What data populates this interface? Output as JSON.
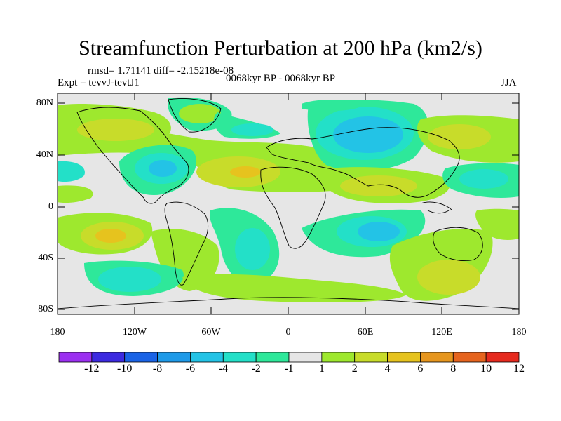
{
  "title": "Streamfunction Perturbation at 200 hPa (km2/s)",
  "rmsd_line": "rmsd= 1.71141 diff= -2.15218e-08",
  "expt_line": "Expt = tevvJ-tevtJ1",
  "period_line": "0068kyr BP - 0068kyr BP",
  "season": "JJA",
  "lat_labels": [
    "80N",
    "40N",
    "0",
    "40S",
    "80S"
  ],
  "lon_labels": [
    "180",
    "120W",
    "60W",
    "0",
    "60E",
    "120E",
    "180"
  ],
  "colorbar": {
    "levels": [
      "-12",
      "-10",
      "-8",
      "-6",
      "-4",
      "-2",
      "-1",
      "1",
      "2",
      "4",
      "6",
      "8",
      "10",
      "12"
    ],
    "colors": [
      "#9b30f0",
      "#3c2ae0",
      "#1a63e6",
      "#1e9ae8",
      "#23c3e6",
      "#23e0c8",
      "#2ee89a",
      "#e6e6e6",
      "#9ee82e",
      "#c8dc2a",
      "#e6c31e",
      "#e6961e",
      "#e6641e",
      "#e62a1e"
    ]
  }
}
